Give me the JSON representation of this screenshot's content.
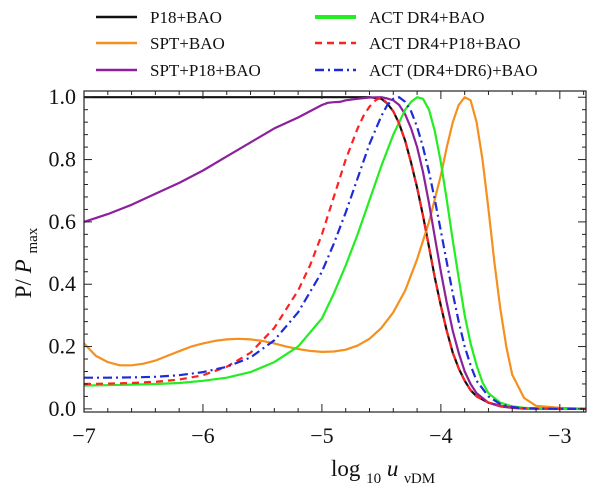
{
  "chart_data": {
    "type": "line",
    "xlabel_main": "log",
    "xlabel_sub1": "10",
    "xlabel_var": "u",
    "xlabel_sub2": "νDM",
    "ylabel_main": "P/",
    "ylabel_var": "P",
    "ylabel_sub": "max",
    "xlim": [
      -7.0,
      -2.78
    ],
    "ylim": [
      -0.01,
      1.02
    ],
    "xticks": [
      -7,
      -6,
      -5,
      -4,
      -3
    ],
    "xtick_labels": [
      "−7",
      "−6",
      "−5",
      "−4",
      "−3"
    ],
    "yticks": [
      0.0,
      0.2,
      0.4,
      0.6,
      0.8,
      1.0
    ],
    "ytick_labels": [
      "0.0",
      "0.2",
      "0.4",
      "0.6",
      "0.8",
      "1.0"
    ],
    "grid": false,
    "legend_position": "top",
    "series": [
      {
        "name": "P18+BAO",
        "color": "#111111",
        "dash": "solid",
        "x": [
          -7.0,
          -6.0,
          -5.0,
          -4.8,
          -4.6,
          -4.5,
          -4.45,
          -4.4,
          -4.35,
          -4.3,
          -4.25,
          -4.2,
          -4.15,
          -4.1,
          -4.05,
          -4.0,
          -3.95,
          -3.9,
          -3.85,
          -3.8,
          -3.75,
          -3.7,
          -3.6,
          -3.5,
          -3.4,
          -3.3,
          -3.0,
          -2.78
        ],
        "y": [
          1.0,
          1.0,
          1.0,
          1.0,
          1.0,
          0.995,
          0.98,
          0.955,
          0.915,
          0.86,
          0.79,
          0.71,
          0.62,
          0.52,
          0.42,
          0.33,
          0.25,
          0.18,
          0.13,
          0.09,
          0.06,
          0.04,
          0.02,
          0.01,
          0.005,
          0.002,
          0.0,
          0.0
        ]
      },
      {
        "name": "SPT+BAO",
        "color": "#f5901e",
        "dash": "solid",
        "x": [
          -7.0,
          -6.9,
          -6.8,
          -6.7,
          -6.6,
          -6.5,
          -6.4,
          -6.3,
          -6.2,
          -6.1,
          -6.0,
          -5.9,
          -5.8,
          -5.7,
          -5.6,
          -5.5,
          -5.4,
          -5.3,
          -5.2,
          -5.1,
          -5.0,
          -4.9,
          -4.8,
          -4.7,
          -4.6,
          -4.5,
          -4.4,
          -4.3,
          -4.2,
          -4.1,
          -4.0,
          -3.95,
          -3.9,
          -3.85,
          -3.8,
          -3.75,
          -3.7,
          -3.65,
          -3.6,
          -3.55,
          -3.5,
          -3.45,
          -3.4,
          -3.3,
          -3.2,
          -3.0,
          -2.78
        ],
        "y": [
          0.21,
          0.17,
          0.15,
          0.14,
          0.14,
          0.145,
          0.155,
          0.17,
          0.185,
          0.2,
          0.21,
          0.218,
          0.223,
          0.225,
          0.223,
          0.218,
          0.21,
          0.2,
          0.192,
          0.186,
          0.183,
          0.184,
          0.19,
          0.203,
          0.225,
          0.26,
          0.31,
          0.38,
          0.48,
          0.6,
          0.75,
          0.84,
          0.92,
          0.975,
          1.0,
          0.99,
          0.92,
          0.8,
          0.64,
          0.47,
          0.32,
          0.2,
          0.11,
          0.035,
          0.01,
          0.003,
          0.0
        ]
      },
      {
        "name": "SPT+P18+BAO",
        "color": "#8b219b",
        "dash": "solid",
        "x": [
          -7.0,
          -6.8,
          -6.6,
          -6.4,
          -6.2,
          -6.0,
          -5.8,
          -5.6,
          -5.4,
          -5.2,
          -5.0,
          -4.95,
          -4.9,
          -4.85,
          -4.8,
          -4.7,
          -4.6,
          -4.5,
          -4.45,
          -4.4,
          -4.35,
          -4.3,
          -4.25,
          -4.2,
          -4.15,
          -4.1,
          -4.05,
          -4.0,
          -3.95,
          -3.9,
          -3.85,
          -3.8,
          -3.75,
          -3.7,
          -3.6,
          -3.5,
          -3.4,
          -3.3,
          -3.0,
          -2.78
        ],
        "y": [
          0.6,
          0.625,
          0.655,
          0.69,
          0.725,
          0.765,
          0.81,
          0.855,
          0.9,
          0.935,
          0.975,
          0.982,
          0.984,
          0.985,
          0.99,
          0.995,
          0.999,
          1.0,
          0.996,
          0.99,
          0.975,
          0.945,
          0.9,
          0.84,
          0.76,
          0.66,
          0.55,
          0.44,
          0.34,
          0.25,
          0.18,
          0.12,
          0.08,
          0.05,
          0.02,
          0.008,
          0.003,
          0.001,
          0.0,
          0.0
        ]
      },
      {
        "name": "ACT DR4+BAO",
        "color": "#22ee22",
        "dash": "solid",
        "x": [
          -7.0,
          -6.8,
          -6.6,
          -6.4,
          -6.2,
          -6.0,
          -5.8,
          -5.6,
          -5.4,
          -5.2,
          -5.0,
          -4.9,
          -4.8,
          -4.7,
          -4.6,
          -4.5,
          -4.4,
          -4.3,
          -4.25,
          -4.2,
          -4.15,
          -4.1,
          -4.05,
          -4.0,
          -3.95,
          -3.9,
          -3.85,
          -3.8,
          -3.75,
          -3.7,
          -3.65,
          -3.6,
          -3.5,
          -3.4,
          -3.3,
          -3.2,
          -3.0,
          -2.78
        ],
        "y": [
          0.075,
          0.076,
          0.078,
          0.08,
          0.083,
          0.09,
          0.1,
          0.118,
          0.15,
          0.2,
          0.29,
          0.37,
          0.46,
          0.56,
          0.67,
          0.78,
          0.88,
          0.96,
          0.985,
          1.0,
          0.995,
          0.96,
          0.89,
          0.79,
          0.67,
          0.54,
          0.42,
          0.3,
          0.21,
          0.14,
          0.085,
          0.05,
          0.02,
          0.008,
          0.003,
          0.001,
          0.0,
          0.0
        ]
      },
      {
        "name": "ACT DR4+P18+BAO",
        "color": "#ff2020",
        "dash": "dashed",
        "x": [
          -7.0,
          -6.8,
          -6.6,
          -6.4,
          -6.2,
          -6.0,
          -5.8,
          -5.6,
          -5.4,
          -5.2,
          -5.1,
          -5.0,
          -4.9,
          -4.8,
          -4.7,
          -4.65,
          -4.6,
          -4.55,
          -4.5,
          -4.45,
          -4.4,
          -4.35,
          -4.3,
          -4.25,
          -4.2,
          -4.15,
          -4.1,
          -4.05,
          -4.0,
          -3.95,
          -3.9,
          -3.85,
          -3.8,
          -3.75,
          -3.7,
          -3.6,
          -3.5,
          -3.4,
          -3.3,
          -3.0,
          -2.78
        ],
        "y": [
          0.08,
          0.081,
          0.083,
          0.087,
          0.094,
          0.108,
          0.135,
          0.18,
          0.26,
          0.38,
          0.46,
          0.56,
          0.68,
          0.8,
          0.9,
          0.94,
          0.97,
          0.99,
          1.0,
          0.98,
          0.955,
          0.915,
          0.86,
          0.79,
          0.71,
          0.62,
          0.52,
          0.42,
          0.33,
          0.25,
          0.18,
          0.13,
          0.09,
          0.06,
          0.04,
          0.02,
          0.01,
          0.005,
          0.002,
          0.0,
          0.0
        ]
      },
      {
        "name": "ACT (DR4+DR6)+BAO",
        "color": "#1f2bd6",
        "dash": "dashdot",
        "x": [
          -7.0,
          -6.8,
          -6.6,
          -6.4,
          -6.2,
          -6.0,
          -5.8,
          -5.6,
          -5.4,
          -5.2,
          -5.0,
          -4.9,
          -4.8,
          -4.7,
          -4.6,
          -4.5,
          -4.45,
          -4.4,
          -4.35,
          -4.3,
          -4.25,
          -4.2,
          -4.15,
          -4.1,
          -4.05,
          -4.0,
          -3.95,
          -3.9,
          -3.85,
          -3.8,
          -3.75,
          -3.7,
          -3.6,
          -3.5,
          -3.4,
          -3.3,
          -3.0,
          -2.78
        ],
        "y": [
          0.1,
          0.1,
          0.101,
          0.103,
          0.108,
          0.118,
          0.135,
          0.165,
          0.22,
          0.31,
          0.44,
          0.53,
          0.63,
          0.74,
          0.85,
          0.94,
          0.975,
          0.995,
          1.0,
          0.985,
          0.955,
          0.905,
          0.84,
          0.76,
          0.67,
          0.57,
          0.47,
          0.37,
          0.28,
          0.2,
          0.14,
          0.09,
          0.04,
          0.015,
          0.006,
          0.002,
          0.0,
          0.0
        ]
      }
    ]
  }
}
